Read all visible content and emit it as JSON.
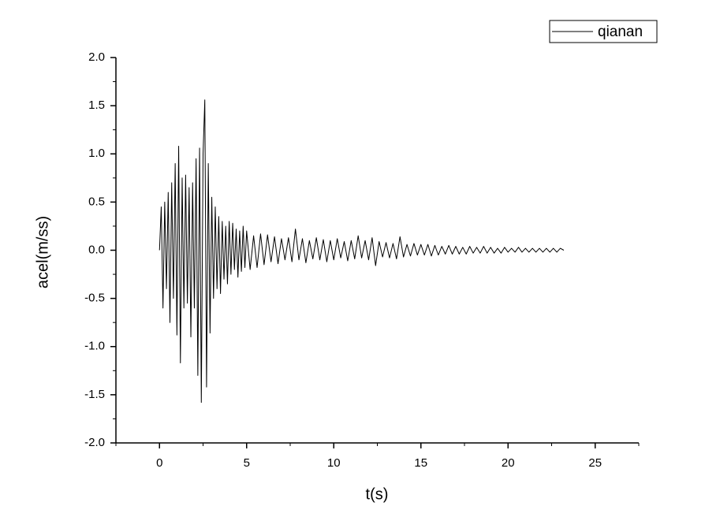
{
  "chart_data": {
    "type": "line",
    "x_label": "t(s)",
    "y_label": "acel(m/ss)",
    "xlim": [
      -2.5,
      27.5
    ],
    "ylim": [
      -2.0,
      2.0
    ],
    "xticks": [
      0,
      5,
      10,
      15,
      20,
      25
    ],
    "yticks": [
      {
        "value": -2.0,
        "label": "-2.0"
      },
      -1.5,
      {
        "value": -1.0,
        "label": "-1.0"
      },
      -0.5,
      {
        "value": 0.0,
        "label": "0.0"
      },
      0.5,
      {
        "value": 1.0,
        "label": "1.0"
      },
      1.5,
      {
        "value": 2.0,
        "label": "2.0"
      }
    ],
    "minor_ticks": true,
    "grid": false,
    "legend": "top-right",
    "x": [
      0.0,
      0.1,
      0.2,
      0.3,
      0.4,
      0.5,
      0.6,
      0.7,
      0.8,
      0.9,
      1.0,
      1.1,
      1.2,
      1.3,
      1.4,
      1.5,
      1.6,
      1.7,
      1.8,
      1.9,
      2.0,
      2.1,
      2.2,
      2.3,
      2.4,
      2.5,
      2.6,
      2.7,
      2.8,
      2.9,
      3.0,
      3.1,
      3.2,
      3.3,
      3.4,
      3.5,
      3.6,
      3.7,
      3.8,
      3.9,
      4.0,
      4.1,
      4.2,
      4.3,
      4.4,
      4.5,
      4.6,
      4.7,
      4.8,
      4.9,
      5.0,
      5.2,
      5.4,
      5.6,
      5.8,
      6.0,
      6.2,
      6.4,
      6.6,
      6.8,
      7.0,
      7.2,
      7.4,
      7.6,
      7.8,
      8.0,
      8.2,
      8.4,
      8.6,
      8.8,
      9.0,
      9.2,
      9.4,
      9.6,
      9.8,
      10.0,
      10.2,
      10.4,
      10.6,
      10.8,
      11.0,
      11.2,
      11.4,
      11.6,
      11.8,
      12.0,
      12.2,
      12.4,
      12.6,
      12.8,
      13.0,
      13.2,
      13.4,
      13.6,
      13.8,
      14.0,
      14.2,
      14.4,
      14.6,
      14.8,
      15.0,
      15.2,
      15.4,
      15.6,
      15.8,
      16.0,
      16.2,
      16.4,
      16.6,
      16.8,
      17.0,
      17.2,
      17.4,
      17.6,
      17.8,
      18.0,
      18.2,
      18.4,
      18.6,
      18.8,
      19.0,
      19.2,
      19.4,
      19.6,
      19.8,
      20.0,
      20.2,
      20.4,
      20.6,
      20.8,
      21.0,
      21.2,
      21.4,
      21.6,
      21.8,
      22.0,
      22.2,
      22.4,
      22.6,
      22.8,
      23.0,
      23.2
    ],
    "series": [
      {
        "name": "qianan",
        "color": "#000000",
        "values": [
          0,
          0.45,
          -0.6,
          0.5,
          -0.4,
          0.6,
          -0.75,
          0.7,
          -0.5,
          0.9,
          -0.88,
          1.08,
          -1.17,
          0.75,
          -0.6,
          0.78,
          -0.55,
          0.65,
          -0.9,
          0.7,
          -0.6,
          0.95,
          -1.3,
          1.06,
          -1.58,
          1.0,
          1.56,
          -1.42,
          0.9,
          -0.86,
          0.55,
          -0.5,
          0.45,
          -0.4,
          0.35,
          -0.45,
          0.3,
          -0.3,
          0.25,
          -0.35,
          0.3,
          -0.25,
          0.28,
          -0.2,
          0.22,
          -0.28,
          0.2,
          -0.22,
          0.25,
          -0.18,
          0.2,
          -0.2,
          0.15,
          -0.18,
          0.17,
          -0.15,
          0.16,
          -0.12,
          0.14,
          -0.14,
          0.12,
          -0.1,
          0.13,
          -0.12,
          0.22,
          -0.1,
          0.12,
          -0.13,
          0.1,
          -0.09,
          0.13,
          -0.1,
          0.11,
          -0.12,
          0.1,
          -0.1,
          0.12,
          -0.08,
          0.09,
          -0.11,
          0.1,
          -0.09,
          0.15,
          -0.08,
          0.1,
          -0.1,
          0.13,
          -0.16,
          0.09,
          -0.07,
          0.08,
          -0.08,
          0.07,
          -0.09,
          0.14,
          -0.07,
          0.06,
          -0.06,
          0.07,
          -0.05,
          0.06,
          -0.05,
          0.06,
          -0.06,
          0.05,
          -0.05,
          0.04,
          -0.04,
          0.05,
          -0.04,
          0.04,
          -0.04,
          0.03,
          -0.04,
          0.04,
          -0.03,
          0.03,
          -0.03,
          0.04,
          -0.03,
          0.03,
          -0.03,
          0.02,
          -0.03,
          0.03,
          -0.02,
          0.02,
          -0.02,
          0.03,
          -0.02,
          0.02,
          -0.02,
          0.02,
          -0.02,
          0.02,
          -0.02,
          0.02,
          -0.02,
          0.02,
          -0.02,
          0.02,
          0.0
        ]
      }
    ]
  }
}
